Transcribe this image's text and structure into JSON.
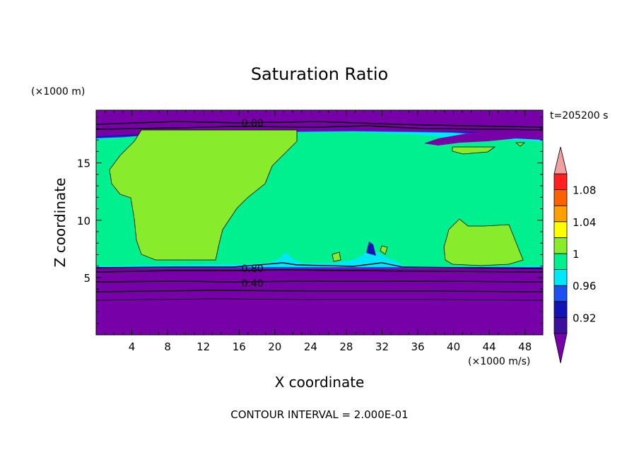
{
  "chart_data": {
    "type": "contour",
    "title": "Saturation Ratio",
    "xlabel": "X coordinate",
    "ylabel": "Z coordinate",
    "x_unit": "(×1000 m/s)",
    "y_unit": "(×1000 m)",
    "time_label": "t=205200 s",
    "footer": "CONTOUR INTERVAL = 2.000E-01",
    "xlim": [
      0,
      50
    ],
    "ylim": [
      0,
      19.6
    ],
    "x_ticks": [
      4,
      8,
      12,
      16,
      20,
      24,
      28,
      32,
      36,
      40,
      44,
      48
    ],
    "y_ticks": [
      5,
      10,
      15
    ],
    "contour_labels": [
      {
        "text": "0.80",
        "x": 17.5,
        "y": 18.5
      },
      {
        "text": "0.80",
        "x": 17.5,
        "y": 5.8
      },
      {
        "text": "0.40",
        "x": 17.5,
        "y": 4.5
      }
    ],
    "colorbar": {
      "levels": [
        0.9,
        0.92,
        0.94,
        0.96,
        0.98,
        1.0,
        1.02,
        1.04,
        1.06,
        1.08,
        1.1
      ],
      "tick_labels": [
        "0.92",
        "0.96",
        "1",
        "1.04",
        "1.08"
      ],
      "tick_values": [
        0.92,
        0.96,
        1.0,
        1.04,
        1.08
      ],
      "colors": [
        "#3c0f9c",
        "#1414b4",
        "#1e50f0",
        "#00e8f8",
        "#00f090",
        "#88ec2c",
        "#ffff00",
        "#ffa000",
        "#ff6000",
        "#ff2020"
      ],
      "under_color": "#7800a8",
      "over_color": "#f0a0a0"
    },
    "region_colors": {
      "dry": "#7800a8",
      "near_saturated": "#00f090",
      "supersaturated": "#88ec2c",
      "edge_blue": "#1e50f0",
      "edge_cyan": "#00e8f8",
      "deep_blue": "#1414b4"
    }
  }
}
